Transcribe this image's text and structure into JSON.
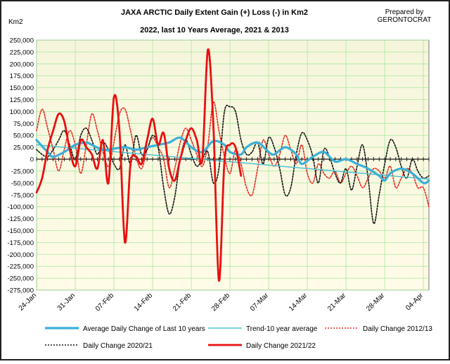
{
  "chart_data": {
    "type": "line",
    "title": "JAXA ARCTIC Daily Extent Gain (+) Loss (-) in Km2",
    "subtitle": "2022, last 10 Years Average, 2021 & 2013",
    "credit_line1": "Prepared by",
    "credit_line2": "GERONTOCRAT",
    "ylabel": "Km2",
    "ylim": [
      -275000,
      250000
    ],
    "yticks": [
      250000,
      225000,
      200000,
      175000,
      150000,
      125000,
      100000,
      75000,
      50000,
      25000,
      0,
      -25000,
      -50000,
      -75000,
      -100000,
      -125000,
      -150000,
      -175000,
      -200000,
      -225000,
      -250000,
      -275000
    ],
    "ytick_labels": [
      "250,000",
      "225,000",
      "200,000",
      "175,000",
      "150,000",
      "125,000",
      "100,000",
      "75,000",
      "50,000",
      "25,000",
      "0",
      "-25,000",
      "-50,000",
      "-75,000",
      "-100,000",
      "-125,000",
      "-150,000",
      "-175,000",
      "-200,000",
      "-225,000",
      "-250,000",
      "-275,000"
    ],
    "xlim": [
      0,
      71
    ],
    "xticks": [
      0,
      7,
      14,
      21,
      28,
      35,
      42,
      49,
      56,
      63,
      70
    ],
    "xtick_labels": [
      "24-Jan",
      "31-Jan",
      "07-Feb",
      "14-Feb",
      "21-Feb",
      "28-Feb",
      "07-Mar",
      "14-Mar",
      "21-Mar",
      "28-Mar",
      "04-Apr"
    ],
    "series": [
      {
        "name": "Average Daily Change of Last 10 years",
        "color": "#3bb0d8",
        "width": 3.2,
        "dash": "",
        "values": [
          [
            0,
            40000
          ],
          [
            2,
            15000
          ],
          [
            3,
            5000
          ],
          [
            5,
            15000
          ],
          [
            7,
            30000
          ],
          [
            9,
            35000
          ],
          [
            10,
            30000
          ],
          [
            12,
            20000
          ],
          [
            14,
            22000
          ],
          [
            16,
            25000
          ],
          [
            18,
            20000
          ],
          [
            20,
            25000
          ],
          [
            22,
            30000
          ],
          [
            24,
            35000
          ],
          [
            26,
            45000
          ],
          [
            28,
            25000
          ],
          [
            30,
            15000
          ],
          [
            32,
            38000
          ],
          [
            34,
            30000
          ],
          [
            35,
            15000
          ],
          [
            37,
            10000
          ],
          [
            38,
            25000
          ],
          [
            40,
            35000
          ],
          [
            42,
            15000
          ],
          [
            43,
            10000
          ],
          [
            45,
            25000
          ],
          [
            47,
            10000
          ],
          [
            48,
            -10000
          ],
          [
            50,
            5000
          ],
          [
            52,
            15000
          ],
          [
            54,
            -5000
          ],
          [
            56,
            0
          ],
          [
            58,
            -10000
          ],
          [
            60,
            -20000
          ],
          [
            62,
            -35000
          ],
          [
            63,
            -45000
          ],
          [
            64,
            -30000
          ],
          [
            66,
            -20000
          ],
          [
            68,
            -30000
          ],
          [
            70,
            -50000
          ],
          [
            71,
            -45000
          ]
        ]
      },
      {
        "name": "Trend-10 year average",
        "color": "#4ec3d3",
        "width": 1.5,
        "dash": "",
        "values": [
          [
            0,
            30000
          ],
          [
            71,
            -42000
          ]
        ]
      },
      {
        "name": "Daily Change 2012/13",
        "color": "#e8281e",
        "width": 1.6,
        "dash": "2 2",
        "values": [
          [
            0,
            60000
          ],
          [
            1,
            105000
          ],
          [
            2,
            65000
          ],
          [
            3,
            20000
          ],
          [
            4,
            -25000
          ],
          [
            5,
            20000
          ],
          [
            6,
            60000
          ],
          [
            7,
            30000
          ],
          [
            8,
            -30000
          ],
          [
            9,
            30000
          ],
          [
            10,
            95000
          ],
          [
            11,
            60000
          ],
          [
            12,
            15000
          ],
          [
            13,
            -15000
          ],
          [
            14,
            35000
          ],
          [
            15,
            95000
          ],
          [
            16,
            105000
          ],
          [
            17,
            60000
          ],
          [
            18,
            5000
          ],
          [
            19,
            -20000
          ],
          [
            20,
            20000
          ],
          [
            21,
            45000
          ],
          [
            22,
            25000
          ],
          [
            23,
            0
          ],
          [
            24,
            -60000
          ],
          [
            25,
            -20000
          ],
          [
            26,
            35000
          ],
          [
            27,
            65000
          ],
          [
            28,
            40000
          ],
          [
            29,
            10000
          ],
          [
            30,
            -15000
          ],
          [
            31,
            30000
          ],
          [
            32,
            120000
          ],
          [
            33,
            60000
          ],
          [
            34,
            5000
          ],
          [
            35,
            -30000
          ],
          [
            36,
            20000
          ],
          [
            37,
            -10000
          ],
          [
            38,
            -60000
          ],
          [
            39,
            -75000
          ],
          [
            40,
            -20000
          ],
          [
            41,
            40000
          ],
          [
            42,
            10000
          ],
          [
            43,
            -15000
          ],
          [
            44,
            10000
          ],
          [
            45,
            50000
          ],
          [
            46,
            20000
          ],
          [
            47,
            -10000
          ],
          [
            48,
            30000
          ],
          [
            49,
            -30000
          ],
          [
            50,
            -50000
          ],
          [
            51,
            -10000
          ],
          [
            52,
            -30000
          ],
          [
            53,
            -40000
          ],
          [
            54,
            -25000
          ],
          [
            55,
            -50000
          ],
          [
            56,
            -30000
          ],
          [
            57,
            -15000
          ],
          [
            58,
            -35000
          ],
          [
            59,
            -60000
          ],
          [
            60,
            -40000
          ],
          [
            61,
            -20000
          ],
          [
            62,
            -25000
          ],
          [
            63,
            -40000
          ],
          [
            64,
            -15000
          ],
          [
            65,
            -60000
          ],
          [
            66,
            -40000
          ],
          [
            67,
            -20000
          ],
          [
            68,
            -30000
          ],
          [
            69,
            -60000
          ],
          [
            70,
            -60000
          ],
          [
            71,
            -100000
          ]
        ]
      },
      {
        "name": "Daily Change 2020/21",
        "color": "#111111",
        "width": 1.6,
        "dash": "2 2",
        "values": [
          [
            0,
            20000
          ],
          [
            1,
            10000
          ],
          [
            2,
            5000
          ],
          [
            3,
            20000
          ],
          [
            4,
            40000
          ],
          [
            5,
            60000
          ],
          [
            6,
            30000
          ],
          [
            7,
            0
          ],
          [
            8,
            50000
          ],
          [
            9,
            65000
          ],
          [
            10,
            40000
          ],
          [
            11,
            10000
          ],
          [
            12,
            35000
          ],
          [
            13,
            20000
          ],
          [
            14,
            -10000
          ],
          [
            15,
            -20000
          ],
          [
            16,
            30000
          ],
          [
            17,
            -10000
          ],
          [
            18,
            50000
          ],
          [
            19,
            10000
          ],
          [
            20,
            20000
          ],
          [
            21,
            50000
          ],
          [
            22,
            25000
          ],
          [
            23,
            -60000
          ],
          [
            24,
            -115000
          ],
          [
            25,
            -80000
          ],
          [
            26,
            0
          ],
          [
            27,
            40000
          ],
          [
            28,
            10000
          ],
          [
            29,
            -15000
          ],
          [
            30,
            0
          ],
          [
            31,
            15000
          ],
          [
            32,
            -50000
          ],
          [
            33,
            -20000
          ],
          [
            34,
            100000
          ],
          [
            35,
            110000
          ],
          [
            36,
            100000
          ],
          [
            37,
            40000
          ],
          [
            38,
            10000
          ],
          [
            39,
            15000
          ],
          [
            40,
            35000
          ],
          [
            41,
            -10000
          ],
          [
            42,
            45000
          ],
          [
            43,
            25000
          ],
          [
            44,
            -20000
          ],
          [
            45,
            -75000
          ],
          [
            46,
            -60000
          ],
          [
            47,
            10000
          ],
          [
            48,
            55000
          ],
          [
            49,
            40000
          ],
          [
            50,
            5000
          ],
          [
            51,
            -50000
          ],
          [
            52,
            20000
          ],
          [
            53,
            5000
          ],
          [
            54,
            -30000
          ],
          [
            55,
            -50000
          ],
          [
            56,
            -20000
          ],
          [
            57,
            -65000
          ],
          [
            58,
            -15000
          ],
          [
            59,
            30000
          ],
          [
            60,
            -40000
          ],
          [
            61,
            -135000
          ],
          [
            62,
            -75000
          ],
          [
            63,
            -10000
          ],
          [
            64,
            40000
          ],
          [
            65,
            25000
          ],
          [
            66,
            -15000
          ],
          [
            67,
            -40000
          ],
          [
            68,
            0
          ],
          [
            69,
            -25000
          ],
          [
            70,
            -40000
          ],
          [
            71,
            -35000
          ]
        ]
      },
      {
        "name": "Daily Change 2021/22",
        "color": "#e81010",
        "width": 2.8,
        "dash": "",
        "values": [
          [
            0,
            -70000
          ],
          [
            1,
            -40000
          ],
          [
            2,
            20000
          ],
          [
            3,
            60000
          ],
          [
            4,
            95000
          ],
          [
            5,
            80000
          ],
          [
            6,
            20000
          ],
          [
            7,
            -15000
          ],
          [
            8,
            40000
          ],
          [
            9,
            25000
          ],
          [
            10,
            10000
          ],
          [
            11,
            -20000
          ],
          [
            12,
            40000
          ],
          [
            13,
            -50000
          ],
          [
            14,
            130000
          ],
          [
            15,
            60000
          ],
          [
            16,
            -175000
          ],
          [
            17,
            -10000
          ],
          [
            18,
            5000
          ],
          [
            19,
            -10000
          ],
          [
            20,
            40000
          ],
          [
            21,
            85000
          ],
          [
            22,
            30000
          ],
          [
            23,
            55000
          ],
          [
            24,
            -20000
          ],
          [
            25,
            -45000
          ],
          [
            26,
            0
          ],
          [
            27,
            40000
          ],
          [
            28,
            65000
          ],
          [
            29,
            40000
          ],
          [
            30,
            0
          ],
          [
            31,
            230000
          ],
          [
            32,
            70000
          ],
          [
            33,
            -255000
          ],
          [
            34,
            -5000
          ],
          [
            35,
            30000
          ],
          [
            36,
            25000
          ],
          [
            37,
            -35000
          ]
        ]
      }
    ],
    "legend": [
      {
        "label": "Average Daily Change of Last 10 years",
        "color": "#3bb0d8",
        "width": 3.2,
        "dash": ""
      },
      {
        "label": "Trend-10 year average",
        "color": "#4ec3d3",
        "width": 1.5,
        "dash": ""
      },
      {
        "label": "Daily Change 2012/13",
        "color": "#e8281e",
        "width": 1.6,
        "dash": "2 2"
      },
      {
        "label": "Daily Change 2020/21",
        "color": "#111111",
        "width": 1.6,
        "dash": "2 2"
      },
      {
        "label": "Daily Change 2021/22",
        "color": "#e81010",
        "width": 2.8,
        "dash": ""
      }
    ],
    "legend_position": "bottom",
    "grid": true,
    "plot_background_top": "#f5f5dc",
    "plot_background_bottom": "#fffbe6",
    "grid_color": "#a8e8a0"
  }
}
